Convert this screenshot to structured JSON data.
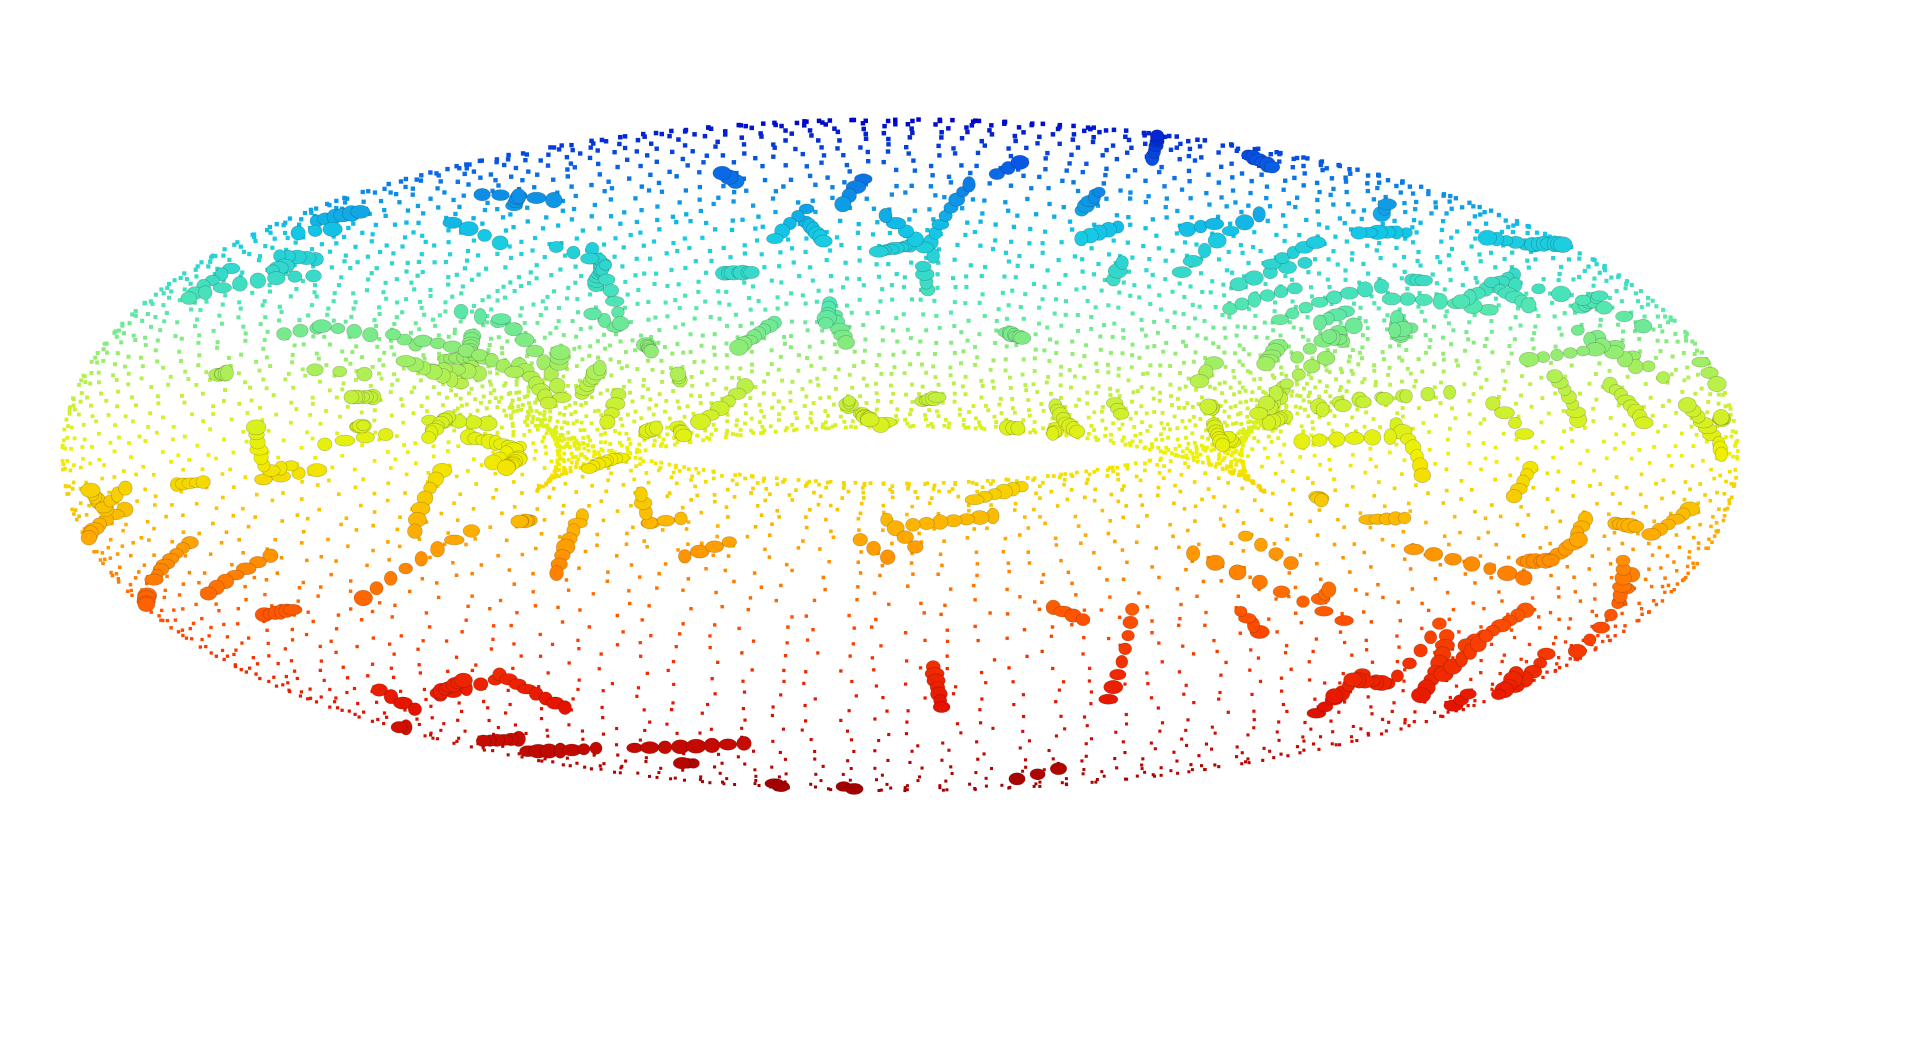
{
  "scene": {
    "subject": "torus-point-cloud",
    "background_color": "#ffffff",
    "colormap": [
      "#0000c8",
      "#0a64e6",
      "#14c8e6",
      "#50e6b4",
      "#b4f050",
      "#f0f000",
      "#ffaa00",
      "#ff5000",
      "#e61400",
      "#a00000"
    ]
  }
}
